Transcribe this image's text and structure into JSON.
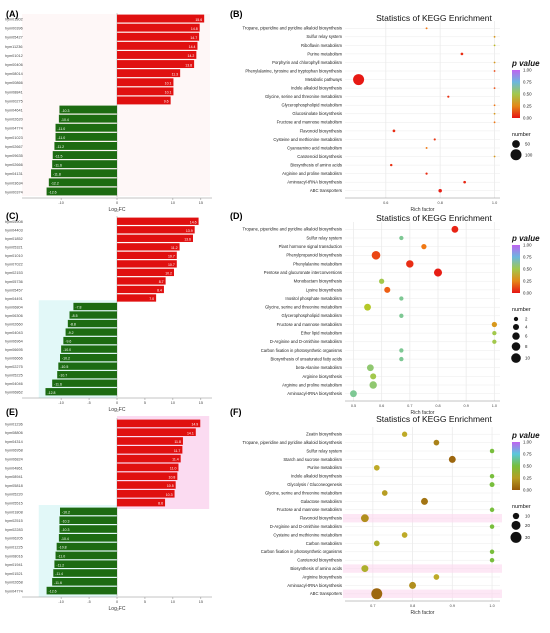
{
  "chart_data": [
    {
      "panel": "(A)",
      "type": "bar",
      "orientation": "horizontal",
      "xlabel": "Log₂FC",
      "xlim": [
        -17,
        17
      ],
      "xticks": [
        -10,
        0,
        10,
        15
      ],
      "genes": [
        "hym01802",
        "hym00396",
        "hym05427",
        "hym11236",
        "hym01012",
        "hym00406",
        "hym08014",
        "hym00866",
        "hym08841",
        "hym00275",
        "hym04641",
        "hym02620",
        "hym04774",
        "hym01023",
        "hym02667",
        "hym09635",
        "hym02666",
        "hym04131",
        "hym03634",
        "hym00374"
      ],
      "values": [
        15.6,
        14.8,
        14.7,
        14.4,
        14.2,
        13.8,
        11.3,
        10.1,
        10.1,
        9.6,
        -10.3,
        -10.4,
        -11.0,
        -11.0,
        -11.2,
        -11.5,
        -11.6,
        -11.8,
        -12.2,
        -12.6
      ],
      "value_labels": [
        "15.6",
        "14.8",
        "14.7",
        "14.4",
        "14.2",
        "13.8",
        "11.3",
        "10.1",
        "10.1",
        "9.6",
        "-10.3",
        "-10.4",
        "-11.0",
        "-11.0",
        "-11.2",
        "-11.5",
        "-11.6",
        "-11.8",
        "-12.2",
        "-12.6"
      ]
    },
    {
      "panel": "(B)",
      "type": "scatter",
      "title": "Statistics of KEGG Enrichment",
      "xlabel": "Rich factor",
      "xlim": [
        0.45,
        1.02
      ],
      "xticks": [
        0.6,
        0.8,
        1.0
      ],
      "categories": [
        "Tropane, piperidine and pyridine alkaloid biosynthesis",
        "Sulfur relay system",
        "Riboflavin metabolism",
        "Purine metabolism",
        "Porphyrin and chlorophyll metabolism",
        "Phenylalanine, tyrosine and tryptophan biosynthesis",
        "Metabolic pathways",
        "Indole alkaloid biosynthesis",
        "Glycine, serine and threonine metabolism",
        "Glycerophospholipid metabolism",
        "Glucosinolate biosynthesis",
        "Fructose and mannose metabolism",
        "Flavonoid biosynthesis",
        "Cysteine and methionine metabolism",
        "Cyanoamino acid metabolism",
        "Carotenoid biosynthesis",
        "Biosynthesis of amino acids",
        "Arginine and proline metabolism",
        "Aminoacyl-tRNA biosynthesis",
        "ABC transporters"
      ],
      "x": [
        0.75,
        1.0,
        1.0,
        0.88,
        1.0,
        1.0,
        0.5,
        1.0,
        0.83,
        1.0,
        1.0,
        1.0,
        0.63,
        0.78,
        0.75,
        1.0,
        0.62,
        0.75,
        0.89,
        0.8
      ],
      "size": [
        3,
        1,
        1,
        6,
        1,
        1,
        100,
        1,
        4,
        1,
        1,
        1,
        6,
        4,
        3,
        1,
        5,
        4,
        6,
        10
      ],
      "p": [
        0.2,
        0.3,
        0.4,
        0.05,
        0.3,
        0.1,
        0.01,
        0.12,
        0.06,
        0.2,
        0.3,
        0.2,
        0.05,
        0.07,
        0.2,
        0.3,
        0.06,
        0.05,
        0.04,
        0.02
      ],
      "legend": {
        "p_title": "p value",
        "p_ticks": [
          "1.00",
          "0.75",
          "0.50",
          "0.25",
          "0.00"
        ],
        "size_title": "number",
        "size_ticks": [
          "50",
          "100"
        ],
        "size_vals": [
          50,
          100
        ]
      }
    },
    {
      "panel": "(C)",
      "type": "bar",
      "orientation": "horizontal",
      "xlabel": "Log₂FC",
      "xlim": [
        -17,
        17
      ],
      "xticks": [
        -10,
        -5,
        0,
        5,
        10,
        15
      ],
      "genes": [
        "hym05908",
        "hym04403",
        "hym01852",
        "hym05321",
        "hym01010",
        "hym07022",
        "hym02153",
        "hym05736",
        "hym05457",
        "hym04491",
        "hym06804",
        "hym06306",
        "hym02660",
        "hym04043",
        "hym06964",
        "hym06695",
        "hym06666",
        "hym02275",
        "hym05225",
        "hym04046",
        "hym06862"
      ],
      "values": [
        14.6,
        13.9,
        13.6,
        11.2,
        10.7,
        10.7,
        10.2,
        8.7,
        8.4,
        7.0,
        -7.8,
        -8.5,
        -8.8,
        -9.2,
        -9.6,
        -10.0,
        -10.2,
        -10.5,
        -10.7,
        -11.6,
        -12.8
      ],
      "value_labels": [
        "14.6",
        "13.9",
        "13.6",
        "11.2",
        "10.7",
        "10.7",
        "10.2",
        "8.7",
        "8.4",
        "7.0",
        "-7.8",
        "-8.5",
        "-8.8",
        "-9.2",
        "-9.6",
        "-10.0",
        "-10.2",
        "-10.5",
        "-10.7",
        "-11.6",
        "-12.8"
      ]
    },
    {
      "panel": "(D)",
      "type": "scatter",
      "title": "Statistics of KEGG Enrichment",
      "xlabel": "Rich factor",
      "xlim": [
        0.47,
        1.02
      ],
      "xticks": [
        0.5,
        0.6,
        0.7,
        0.8,
        0.9,
        1.0
      ],
      "categories": [
        "Tropane, piperidine and pyridine alkaloid biosynthesis",
        "Sulfur relay system",
        "Plant hormone signal transduction",
        "Phenylpropanoid biosynthesis",
        "Phenylalanine metabolism",
        "Pentose and glucuronate interconversions",
        "Monobactam biosynthesis",
        "Lysine biosynthesis",
        "Inositol phosphate metabolism",
        "Glycine, serine and threonine metabolism",
        "Glycerophospholipid metabolism",
        "Fructose and mannose metabolism",
        "Ether lipid metabolism",
        "D-Arginine and D-ornithine metabolism",
        "Carbon fixation in photosynthetic organisms",
        "Biosynthesis of unsaturated fatty acids",
        "beta-Alanine metabolism",
        "Arginine biosynthesis",
        "Arginine and proline metabolism",
        "Aminoacyl-tRNA biosynthesis"
      ],
      "x": [
        0.86,
        0.67,
        0.75,
        0.58,
        0.7,
        0.8,
        0.6,
        0.62,
        0.67,
        0.55,
        0.67,
        1.0,
        1.0,
        1.0,
        0.67,
        0.67,
        0.56,
        0.57,
        0.57,
        0.5
      ],
      "size": [
        5,
        2,
        3,
        8,
        6,
        7,
        3,
        4,
        2,
        5,
        2,
        3,
        2,
        2,
        2,
        2,
        5,
        4,
        6,
        5
      ],
      "p": [
        0.03,
        0.6,
        0.2,
        0.1,
        0.05,
        0.02,
        0.5,
        0.15,
        0.6,
        0.45,
        0.6,
        0.3,
        0.5,
        0.5,
        0.6,
        0.6,
        0.55,
        0.5,
        0.55,
        0.6
      ],
      "legend": {
        "p_title": "p value",
        "p_ticks": [
          "1.00",
          "0.75",
          "0.50",
          "0.25",
          "0.00"
        ],
        "size_title": "number",
        "size_ticks": [
          "2",
          "4",
          "6",
          "8",
          "10"
        ],
        "size_vals": [
          2,
          4,
          6,
          8,
          10
        ]
      }
    },
    {
      "panel": "(E)",
      "type": "bar",
      "orientation": "horizontal",
      "xlabel": "Log₂FC",
      "xlim": [
        -17,
        17
      ],
      "xticks": [
        -10,
        -5,
        0,
        5,
        10,
        15
      ],
      "genes": [
        "hym01236",
        "hym08806",
        "hym04314",
        "hym06958",
        "hym06824",
        "hym04861",
        "hym08941",
        "hym05818",
        "hym05220",
        "hym05515",
        "hym01808",
        "hym02515",
        "hym02283",
        "hym06205",
        "hym01225",
        "hym08016",
        "hym01941",
        "hym01521",
        "hym02658",
        "hym04774"
      ],
      "values": [
        14.9,
        14.1,
        11.8,
        11.7,
        11.4,
        11.0,
        10.8,
        10.5,
        10.3,
        8.6,
        -10.2,
        -10.3,
        -10.3,
        -10.4,
        -10.8,
        -11.0,
        -11.2,
        -11.4,
        -11.6,
        -12.6
      ],
      "value_labels": [
        "14.9",
        "14.1",
        "11.8",
        "11.7",
        "11.4",
        "11.0",
        "10.8",
        "10.5",
        "10.3",
        "8.6",
        "-10.2",
        "-10.3",
        "-10.3",
        "-10.4",
        "-10.8",
        "-11.0",
        "-11.2",
        "-11.4",
        "-11.6",
        "-12.6"
      ]
    },
    {
      "panel": "(F)",
      "type": "scatter",
      "title": "Statistics of KEGG Enrichment",
      "xlabel": "Rich factor",
      "xlim": [
        0.63,
        1.02
      ],
      "xticks": [
        0.7,
        0.8,
        0.9,
        1.0
      ],
      "categories": [
        "Zeatin biosynthesis",
        "Tropane, piperidine and pyridine alkaloid biosynthesis",
        "Sulfur relay system",
        "Starch and sucrose metabolism",
        "Purine metabolism",
        "Indole alkaloid biosynthesis",
        "Glycolysis / Gluconeogenesis",
        "Glycine, serine and threonine metabolism",
        "Galactose metabolism",
        "Fructose and mannose metabolism",
        "Flavonoid biosynthesis",
        "D-Arginine and D-ornithine metabolism",
        "Cysteine and methionine metabolism",
        "Carbon metabolism",
        "Carbon fixation in photosynthetic organisms",
        "Carotenoid biosynthesis",
        "Biosynthesis of amino acids",
        "Arginine biosynthesis",
        "Aminoacyl-tRNA biosynthesis",
        "ABC transporters"
      ],
      "x": [
        0.78,
        0.86,
        1.0,
        0.9,
        0.71,
        1.0,
        1.0,
        0.73,
        0.83,
        1.0,
        0.68,
        1.0,
        0.78,
        0.71,
        1.0,
        1.0,
        0.68,
        0.86,
        0.8,
        0.71
      ],
      "size": [
        7,
        8,
        5,
        12,
        8,
        5,
        6,
        8,
        12,
        5,
        15,
        5,
        8,
        8,
        5,
        5,
        12,
        8,
        12,
        30
      ],
      "p": [
        0.3,
        0.15,
        0.5,
        0.05,
        0.3,
        0.5,
        0.5,
        0.25,
        0.1,
        0.5,
        0.2,
        0.5,
        0.3,
        0.35,
        0.5,
        0.5,
        0.35,
        0.3,
        0.2,
        0.05
      ],
      "legend": {
        "p_title": "p value",
        "p_ticks": [
          "1.00",
          "0.75",
          "0.50",
          "0.25",
          "0.00"
        ],
        "size_title": "number",
        "size_ticks": [
          "10",
          "20",
          "30"
        ],
        "size_vals": [
          10,
          20,
          30
        ]
      }
    }
  ],
  "colors": {
    "up": "#e01010",
    "down": "#1d6b12",
    "grid": "#ebebeb"
  }
}
